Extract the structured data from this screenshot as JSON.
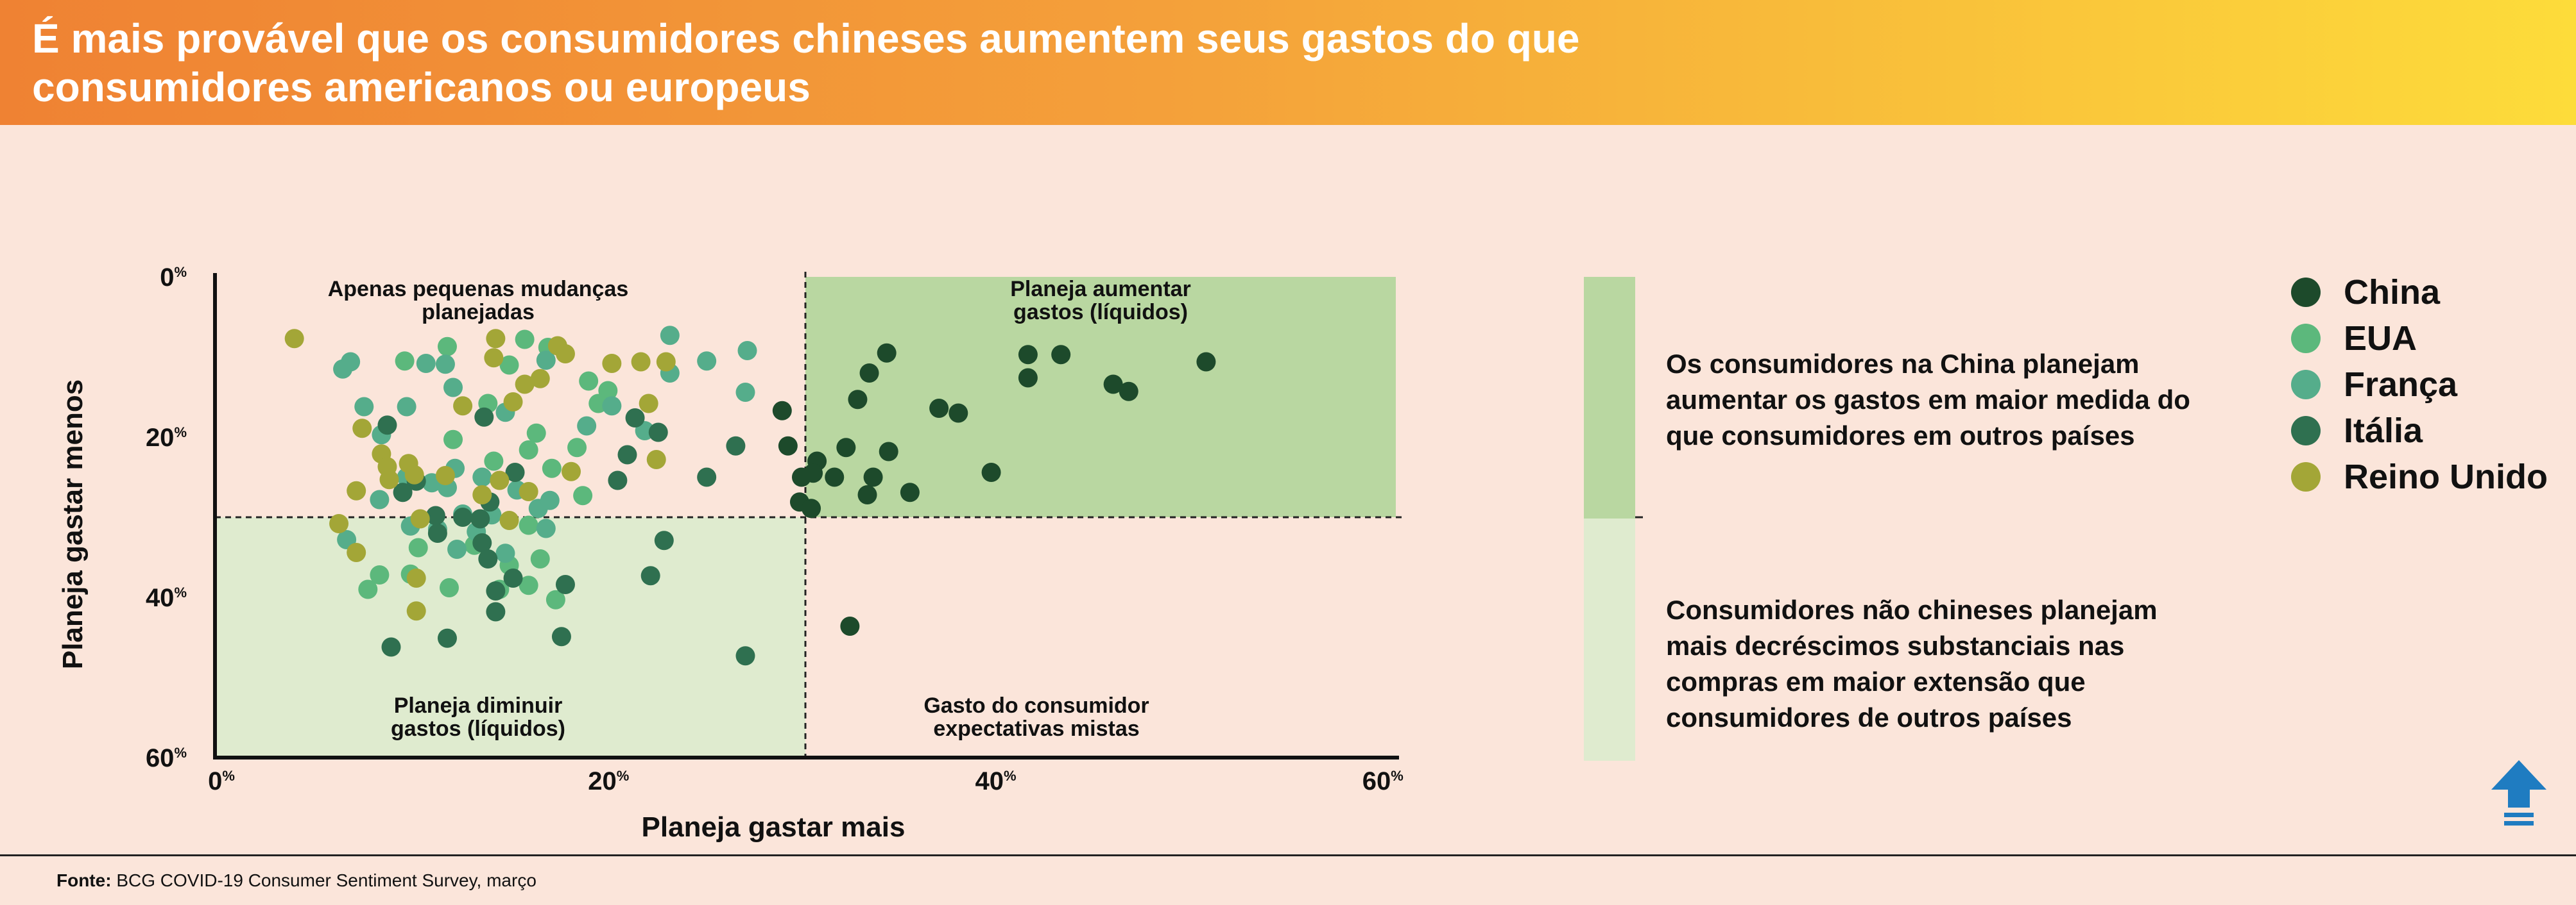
{
  "title": "É mais provável que os consumidores chineses aumentem seus gastos do que consumidores americanos ou europeus",
  "legend": [
    {
      "name": "China",
      "color": "#1d4a2b"
    },
    {
      "name": "EUA",
      "color": "#5cb87c"
    },
    {
      "name": "França",
      "color": "#55ad8b"
    },
    {
      "name": "Itália",
      "color": "#2f7050"
    },
    {
      "name": "Reino Unido",
      "color": "#a3a637"
    }
  ],
  "notes": {
    "top": "Os consumidores na China planejam aumentar os gastos em maior medida do que consumidores em outros países",
    "bottom": "Consumidores não chineses planejam mais decréscimos substanciais nas compras em maior extensão que consumidores de outros países"
  },
  "source": {
    "label": "Fonte:",
    "text": "BCG COVID-19 Consumer Sentiment Survey, março"
  },
  "up_icon": "up-arrow-icon",
  "chart_data": {
    "type": "scatter",
    "xlabel": "Planeja gastar mais",
    "ylabel": "Planeja gastar menos",
    "xlim": [
      0,
      61
    ],
    "ylim": [
      0,
      60
    ],
    "y_inverted": true,
    "x_ticks": [
      {
        "value": 0,
        "num": "0",
        "unit": "%"
      },
      {
        "value": 20,
        "num": "20",
        "unit": "%"
      },
      {
        "value": 40,
        "num": "40",
        "unit": "%"
      },
      {
        "value": 60,
        "num": "60",
        "unit": "%"
      }
    ],
    "y_ticks": [
      {
        "value": 0,
        "num": "0",
        "unit": "%"
      },
      {
        "value": 20,
        "num": "20",
        "unit": "%"
      },
      {
        "value": 40,
        "num": "40",
        "unit": "%"
      },
      {
        "value": 60,
        "num": "60",
        "unit": "%"
      }
    ],
    "threshold_x": 30.5,
    "threshold_y": 30,
    "quadrant_colors": {
      "top_right": "#b9d7a1",
      "bottom_left": "#dfebcf"
    },
    "quadrant_labels": {
      "top_left": [
        "Apenas pequenas mudanças",
        "planejadas"
      ],
      "top_right": [
        "Planeja aumentar",
        "gastos (líquidos)"
      ],
      "bottom_left": [
        "Planeja diminuir",
        "gastos (líquidos)"
      ],
      "bottom_right": [
        "Gasto do consumidor",
        "expectativas mistas"
      ]
    },
    "series": [
      {
        "name": "China",
        "color": "#1d4a2b",
        "points": [
          [
            34.7,
            9.5
          ],
          [
            42.0,
            9.7
          ],
          [
            43.7,
            9.7
          ],
          [
            51.2,
            10.6
          ],
          [
            33.8,
            12.0
          ],
          [
            42.0,
            12.6
          ],
          [
            46.4,
            13.4
          ],
          [
            47.2,
            14.3
          ],
          [
            33.2,
            15.3
          ],
          [
            37.4,
            16.4
          ],
          [
            38.4,
            17.0
          ],
          [
            29.3,
            16.7
          ],
          [
            29.6,
            21.1
          ],
          [
            32.6,
            21.3
          ],
          [
            34.8,
            21.8
          ],
          [
            31.1,
            23.0
          ],
          [
            30.9,
            24.5
          ],
          [
            32.0,
            25.0
          ],
          [
            34.0,
            25.0
          ],
          [
            30.3,
            25.0
          ],
          [
            40.1,
            24.4
          ],
          [
            33.7,
            27.2
          ],
          [
            35.9,
            26.9
          ],
          [
            30.2,
            28.1
          ],
          [
            30.8,
            28.9
          ],
          [
            32.8,
            43.6
          ]
        ]
      },
      {
        "name": "EUA",
        "color": "#5cb87c",
        "points": [
          [
            9.8,
            10.5
          ],
          [
            12.0,
            8.7
          ],
          [
            16.0,
            7.8
          ],
          [
            17.2,
            8.8
          ],
          [
            15.2,
            11.0
          ],
          [
            19.3,
            13.0
          ],
          [
            20.3,
            14.2
          ],
          [
            14.1,
            15.8
          ],
          [
            16.6,
            19.5
          ],
          [
            19.8,
            15.8
          ],
          [
            18.7,
            21.3
          ],
          [
            17.4,
            23.9
          ],
          [
            16.2,
            21.6
          ],
          [
            14.4,
            23.0
          ],
          [
            12.3,
            20.3
          ],
          [
            19.0,
            27.3
          ],
          [
            16.2,
            31.0
          ],
          [
            16.8,
            35.2
          ],
          [
            13.4,
            33.5
          ],
          [
            10.5,
            33.8
          ],
          [
            8.5,
            37.2
          ],
          [
            10.1,
            37.1
          ],
          [
            16.2,
            38.5
          ],
          [
            17.6,
            40.3
          ],
          [
            12.1,
            38.8
          ],
          [
            15.2,
            36.0
          ],
          [
            7.9,
            39.0
          ],
          [
            14.7,
            39.0
          ]
        ]
      },
      {
        "name": "França",
        "color": "#55ad8b",
        "points": [
          [
            6.6,
            11.5
          ],
          [
            7.0,
            10.6
          ],
          [
            10.9,
            10.8
          ],
          [
            11.9,
            10.9
          ],
          [
            17.1,
            10.4
          ],
          [
            12.3,
            13.8
          ],
          [
            7.7,
            16.2
          ],
          [
            9.9,
            16.2
          ],
          [
            8.6,
            19.7
          ],
          [
            20.5,
            16.1
          ],
          [
            23.5,
            12.0
          ],
          [
            23.5,
            7.3
          ],
          [
            25.4,
            10.5
          ],
          [
            27.4,
            14.4
          ],
          [
            27.5,
            9.2
          ],
          [
            22.2,
            19.2
          ],
          [
            15.0,
            16.9
          ],
          [
            19.2,
            18.6
          ],
          [
            12.4,
            23.9
          ],
          [
            13.8,
            25.0
          ],
          [
            11.2,
            25.7
          ],
          [
            9.9,
            25.0
          ],
          [
            8.5,
            27.8
          ],
          [
            12.0,
            26.3
          ],
          [
            15.6,
            26.6
          ],
          [
            16.7,
            28.9
          ],
          [
            17.3,
            27.9
          ],
          [
            12.8,
            29.6
          ],
          [
            14.3,
            29.7
          ],
          [
            10.1,
            31.1
          ],
          [
            13.5,
            31.8
          ],
          [
            11.5,
            31.5
          ],
          [
            12.5,
            34.0
          ],
          [
            15.0,
            34.5
          ],
          [
            6.8,
            32.8
          ],
          [
            17.1,
            31.4
          ]
        ]
      },
      {
        "name": "Itália",
        "color": "#2f7050",
        "points": [
          [
            8.9,
            18.5
          ],
          [
            10.4,
            25.5
          ],
          [
            12.8,
            30.0
          ],
          [
            11.5,
            32.0
          ],
          [
            13.7,
            30.2
          ],
          [
            13.8,
            33.2
          ],
          [
            14.1,
            35.2
          ],
          [
            15.4,
            37.6
          ],
          [
            14.5,
            39.2
          ],
          [
            18.1,
            38.4
          ],
          [
            14.5,
            41.8
          ],
          [
            17.9,
            44.9
          ],
          [
            12.0,
            45.1
          ],
          [
            9.1,
            46.2
          ],
          [
            21.3,
            22.2
          ],
          [
            20.8,
            25.4
          ],
          [
            22.9,
            19.4
          ],
          [
            25.4,
            25.0
          ],
          [
            26.9,
            21.1
          ],
          [
            22.5,
            37.3
          ],
          [
            23.2,
            32.9
          ],
          [
            27.4,
            47.3
          ],
          [
            15.5,
            24.4
          ],
          [
            13.9,
            17.5
          ],
          [
            21.7,
            17.6
          ],
          [
            9.7,
            26.9
          ],
          [
            11.4,
            29.8
          ],
          [
            14.2,
            28.1
          ]
        ]
      },
      {
        "name": "Reino Unido",
        "color": "#a3a637",
        "points": [
          [
            4.1,
            7.7
          ],
          [
            14.5,
            7.7
          ],
          [
            17.7,
            8.6
          ],
          [
            18.1,
            9.6
          ],
          [
            14.4,
            10.1
          ],
          [
            20.5,
            10.8
          ],
          [
            22.0,
            10.6
          ],
          [
            23.3,
            10.6
          ],
          [
            16.8,
            12.7
          ],
          [
            16.0,
            13.4
          ],
          [
            15.4,
            15.6
          ],
          [
            12.8,
            16.1
          ],
          [
            22.4,
            15.8
          ],
          [
            7.6,
            18.9
          ],
          [
            8.6,
            22.1
          ],
          [
            8.9,
            23.7
          ],
          [
            10.0,
            23.3
          ],
          [
            10.3,
            24.7
          ],
          [
            11.9,
            24.8
          ],
          [
            14.7,
            25.4
          ],
          [
            16.2,
            26.8
          ],
          [
            18.4,
            24.3
          ],
          [
            22.8,
            22.8
          ],
          [
            7.3,
            26.7
          ],
          [
            6.4,
            30.8
          ],
          [
            10.6,
            30.2
          ],
          [
            15.2,
            30.4
          ],
          [
            13.8,
            27.2
          ],
          [
            7.3,
            34.4
          ],
          [
            10.4,
            37.6
          ],
          [
            10.4,
            41.7
          ],
          [
            9.0,
            25.3
          ]
        ]
      }
    ]
  }
}
